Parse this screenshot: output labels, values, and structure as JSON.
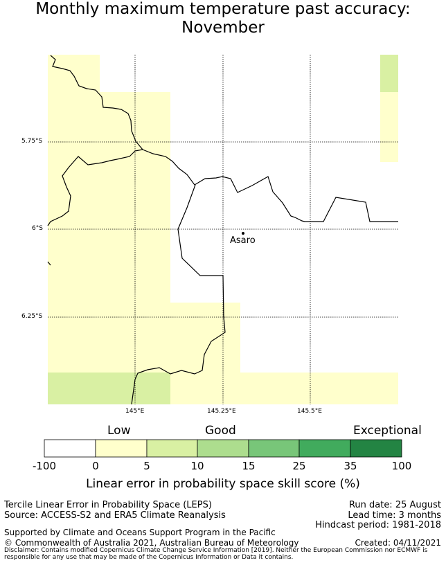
{
  "title": {
    "line1": "Monthly maximum temperature past accuracy:",
    "line2": "November"
  },
  "map": {
    "lat_labels": [
      "5.75°S",
      "6°S",
      "6.25°S"
    ],
    "lon_labels": [
      "145°E",
      "145.25°E",
      "145.5°E"
    ],
    "place_label": "Asaro",
    "colors": {
      "band_0_5": "#ffffcc",
      "band_5_10": "#d9f0a3",
      "land_outline": "#000000"
    }
  },
  "colorbar": {
    "words": {
      "low": "Low",
      "good": "Good",
      "exceptional": "Exceptional"
    },
    "ticks": [
      "-100",
      "0",
      "5",
      "10",
      "15",
      "25",
      "35",
      "100"
    ],
    "colors": [
      "#ffffff",
      "#ffffcc",
      "#d9f0a3",
      "#addd8e",
      "#78c679",
      "#41ab5d",
      "#238443"
    ],
    "label": "Linear error in probability space skill score (%)"
  },
  "footer": {
    "left1": "Tercile Linear Error in Probability Space (LEPS)",
    "left2": "Source: ACCESS-S2 and ERA5 Climate Reanalysis",
    "right1": "Run date: 25 August",
    "right2": "Lead time: 3 months",
    "right3": "Hindcast period: 1981-2018",
    "supported": "Supported by Climate and Oceans Support Program in the Pacific",
    "copyright": "© Commonwealth of Australia 2021, Australian Bureau of Meteorology",
    "created": "Created: 04/11/2021",
    "disclaimer1": "Disclaimer: Contains modified Copernicus Climate Change Service Information [2019]. Neither the European Commission nor ECMWF is",
    "disclaimer2": "responsible for any use that may be made of the Copernicus Information or Data it contains."
  }
}
